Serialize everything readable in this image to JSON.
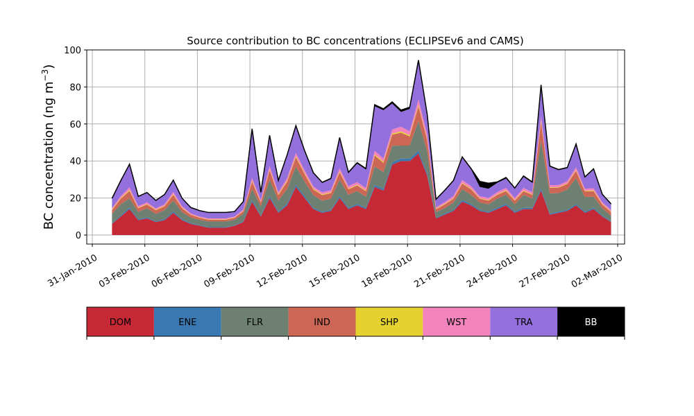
{
  "chart_data": {
    "type": "area",
    "stacked": true,
    "title": "Source contribution to BC concentrations (ECLIPSEv6 and CAMS)",
    "ylabel": "BC concentration (ng m",
    "ylabel_sup": "−3",
    "ylabel_close": ")",
    "xlabel": "",
    "ylim": [
      0,
      100
    ],
    "xlim": [
      "2010-01-31",
      "2010-03-03"
    ],
    "yticks": [
      0,
      20,
      40,
      60,
      80,
      100
    ],
    "xticks": [
      "31-Jan-2010",
      "03-Feb-2010",
      "06-Feb-2010",
      "09-Feb-2010",
      "12-Feb-2010",
      "15-Feb-2010",
      "18-Feb-2010",
      "21-Feb-2010",
      "24-Feb-2010",
      "27-Feb-2010",
      "02-Mar-2010"
    ],
    "grid": true,
    "legend_placement": "bottom colorbar",
    "x_dates": [
      "2010-02-01",
      "2010-02-01",
      "2010-02-02",
      "2010-02-02",
      "2010-02-03",
      "2010-02-03",
      "2010-02-04",
      "2010-02-04",
      "2010-02-05",
      "2010-02-05",
      "2010-02-06",
      "2010-02-06",
      "2010-02-07",
      "2010-02-07",
      "2010-02-08",
      "2010-02-08",
      "2010-02-09",
      "2010-02-09",
      "2010-02-10",
      "2010-02-10",
      "2010-02-11",
      "2010-02-11",
      "2010-02-12",
      "2010-02-12",
      "2010-02-13",
      "2010-02-13",
      "2010-02-14",
      "2010-02-14",
      "2010-02-15",
      "2010-02-15",
      "2010-02-16",
      "2010-02-16",
      "2010-02-17",
      "2010-02-17",
      "2010-02-18",
      "2010-02-18",
      "2010-02-19",
      "2010-02-19",
      "2010-02-20",
      "2010-02-20",
      "2010-02-21",
      "2010-02-21",
      "2010-02-22",
      "2010-02-22",
      "2010-02-23",
      "2010-02-23",
      "2010-02-24",
      "2010-02-24",
      "2010-02-25",
      "2010-02-25",
      "2010-02-26",
      "2010-02-26",
      "2010-02-27",
      "2010-02-27",
      "2010-02-28",
      "2010-02-28",
      "2010-03-01",
      "2010-03-01"
    ],
    "x_hours": [
      3,
      15,
      3,
      15,
      3,
      15,
      3,
      15,
      3,
      15,
      3,
      15,
      3,
      15,
      3,
      15,
      3,
      15,
      3,
      15,
      3,
      15,
      3,
      15,
      3,
      15,
      3,
      15,
      3,
      15,
      3,
      15,
      3,
      15,
      3,
      15,
      3,
      15,
      3,
      15,
      3,
      15,
      3,
      15,
      3,
      15,
      3,
      15,
      3,
      15,
      3,
      15,
      3,
      15,
      3,
      15,
      3,
      15
    ],
    "series": [
      {
        "name": "DOM",
        "color": "#c62936",
        "values": [
          6,
          10,
          14,
          8,
          9,
          7,
          8,
          12,
          8,
          6,
          5,
          4,
          4,
          4,
          5,
          7,
          18,
          10,
          20,
          12,
          16,
          26,
          20,
          14,
          12,
          13,
          20,
          14,
          16,
          14,
          26,
          24,
          38,
          40,
          40,
          44,
          32,
          9,
          11,
          13,
          18,
          16,
          13,
          12,
          14,
          16,
          12,
          14,
          14,
          24,
          11,
          12,
          13,
          16,
          12,
          14,
          10,
          7
        ]
      },
      {
        "name": "ENE",
        "color": "#3a78b2",
        "values": [
          0.4,
          0.6,
          0.8,
          0.5,
          0.5,
          0.4,
          0.5,
          0.7,
          0.5,
          0.4,
          0.3,
          0.3,
          0.3,
          0.3,
          0.3,
          0.4,
          0.9,
          0.5,
          1.0,
          0.6,
          0.8,
          1.0,
          0.9,
          0.6,
          0.6,
          0.6,
          0.9,
          0.7,
          0.8,
          0.7,
          1.0,
          1.0,
          1.2,
          1.3,
          1.3,
          1.5,
          1.2,
          0.4,
          0.5,
          0.6,
          0.8,
          0.7,
          0.6,
          0.6,
          0.7,
          0.8,
          0.6,
          0.7,
          0.7,
          1.0,
          0.5,
          0.6,
          0.6,
          0.7,
          0.6,
          0.7,
          0.5,
          0.4
        ]
      },
      {
        "name": "FLR",
        "color": "#6e8071",
        "values": [
          5,
          6,
          5,
          4,
          5,
          4,
          5,
          6,
          4,
          3,
          3,
          3,
          3,
          3,
          3,
          4,
          6,
          5,
          9,
          6,
          8,
          10,
          8,
          7,
          6,
          6,
          9,
          7,
          7,
          6,
          10,
          9,
          9,
          7,
          7,
          16,
          12,
          3,
          3,
          4,
          6,
          5,
          4,
          4,
          5,
          5,
          4,
          7,
          5,
          26,
          11,
          10,
          11,
          14,
          8,
          6,
          4,
          3
        ]
      },
      {
        "name": "IND",
        "color": "#cc6655",
        "values": [
          2,
          3,
          4,
          2,
          2,
          2,
          2,
          3,
          2,
          1.5,
          1,
          1,
          1,
          1,
          1,
          1.5,
          4,
          2,
          5,
          3,
          4,
          5,
          4,
          3,
          3,
          3,
          4,
          3,
          3,
          3,
          6,
          5,
          6,
          7,
          5,
          8,
          6,
          1.5,
          2,
          2,
          3,
          3,
          2,
          2,
          2,
          2,
          2,
          2,
          2,
          10,
          3,
          3,
          3,
          4,
          3,
          3,
          2,
          2
        ]
      },
      {
        "name": "SHP",
        "color": "#e5d230",
        "values": [
          0.3,
          0.4,
          0.5,
          0.3,
          0.3,
          0.3,
          0.3,
          0.4,
          0.3,
          0.2,
          0.2,
          0.2,
          0.2,
          0.2,
          0.2,
          0.2,
          0.5,
          0.3,
          0.5,
          0.4,
          0.5,
          0.6,
          0.5,
          0.4,
          0.4,
          0.4,
          0.5,
          0.4,
          0.4,
          0.4,
          0.6,
          0.6,
          0.6,
          0.7,
          0.6,
          0.8,
          0.6,
          0.3,
          0.3,
          0.3,
          0.4,
          0.4,
          0.3,
          0.3,
          0.3,
          0.4,
          0.3,
          0.4,
          0.3,
          0.8,
          0.3,
          0.3,
          0.3,
          0.4,
          0.3,
          0.4,
          0.3,
          0.3
        ]
      },
      {
        "name": "WST",
        "color": "#f283bd",
        "values": [
          0.8,
          1.0,
          1.5,
          0.8,
          0.9,
          0.7,
          0.8,
          1.2,
          0.8,
          0.6,
          0.5,
          0.5,
          0.5,
          0.5,
          0.5,
          0.7,
          1.5,
          1.0,
          1.8,
          1.1,
          1.5,
          1.8,
          1.6,
          1.2,
          1.1,
          1.2,
          1.7,
          1.3,
          1.4,
          1.3,
          2.0,
          1.8,
          2.2,
          2.5,
          2.2,
          3.0,
          2.5,
          0.8,
          1.0,
          1.2,
          1.5,
          1.4,
          1.1,
          1.1,
          1.2,
          1.3,
          1.1,
          1.3,
          1.2,
          2.5,
          1.1,
          1.1,
          1.2,
          1.5,
          1.1,
          1.2,
          0.9,
          0.8
        ]
      },
      {
        "name": "TRA",
        "color": "#9370db",
        "values": [
          5,
          8,
          12,
          5,
          5,
          4,
          5,
          6,
          4,
          3,
          3,
          3,
          3,
          3,
          2.5,
          4,
          26,
          4,
          16,
          6,
          12,
          14,
          10,
          7,
          5,
          6,
          16,
          7,
          10,
          10,
          24,
          26,
          14,
          8,
          12,
          20,
          10,
          4,
          6,
          8,
          12,
          9,
          5,
          5,
          5,
          5,
          5,
          6,
          5,
          16,
          10,
          8,
          7,
          12,
          6,
          10,
          4,
          3
        ]
      },
      {
        "name": "BB",
        "color": "#000000",
        "values": [
          0.3,
          0.4,
          0.5,
          0.3,
          0.3,
          0.3,
          0.3,
          0.4,
          0.3,
          0.2,
          0.2,
          0.2,
          0.2,
          0.2,
          0.2,
          0.3,
          0.5,
          0.3,
          0.6,
          0.4,
          0.5,
          0.7,
          0.6,
          0.4,
          0.4,
          0.4,
          0.6,
          0.5,
          0.5,
          0.5,
          0.8,
          0.8,
          0.9,
          1.0,
          0.9,
          1.2,
          0.9,
          0.3,
          0.4,
          0.4,
          0.5,
          0.5,
          3,
          3,
          0.5,
          0.6,
          0.4,
          0.5,
          0.5,
          0.8,
          0.4,
          0.4,
          0.4,
          0.6,
          0.4,
          0.5,
          0.3,
          0.3
        ]
      }
    ]
  }
}
